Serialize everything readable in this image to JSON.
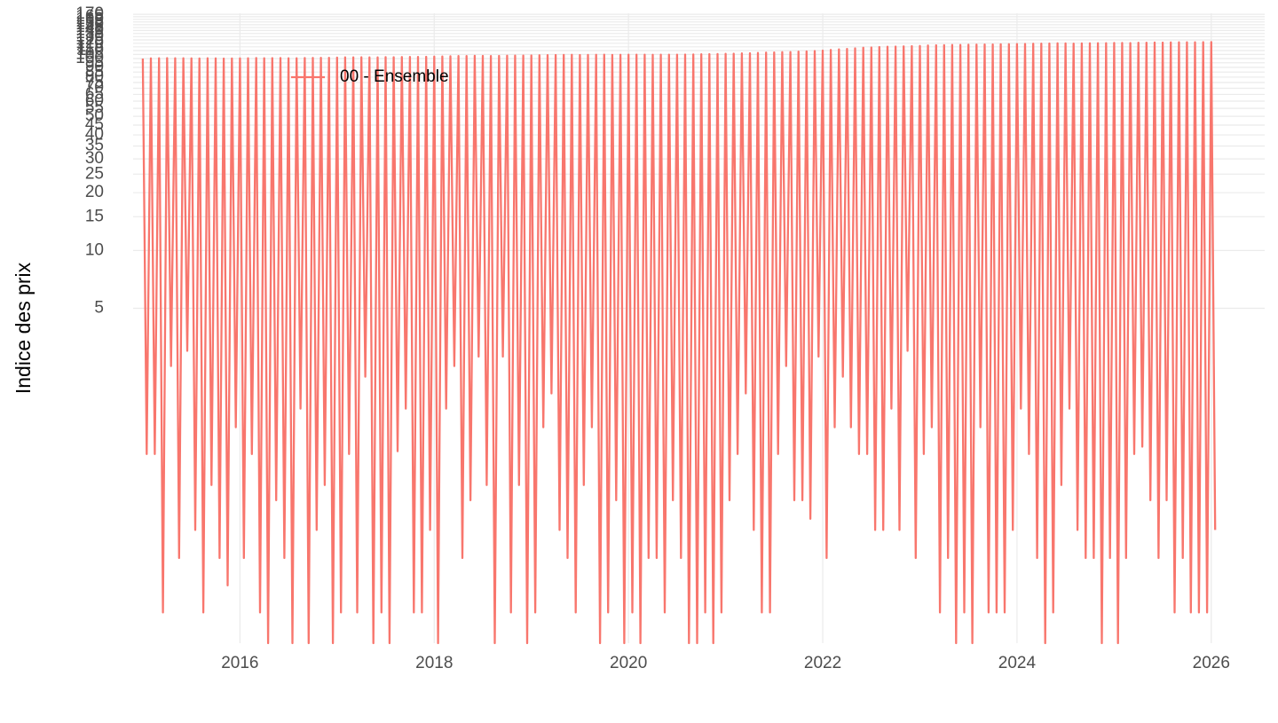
{
  "chart_data": {
    "type": "line",
    "y_label": "Indice des prix",
    "log_y": true,
    "grid": true,
    "legend_position": "top-left",
    "xlim": [
      2014.9,
      2026.55
    ],
    "ylim": [
      0.09,
      172
    ],
    "xticks": [
      2016,
      2018,
      2020,
      2022,
      2024,
      2026
    ],
    "yticks": [
      5,
      10,
      15,
      20,
      25,
      30,
      35,
      40,
      45,
      50,
      55,
      60,
      65,
      70,
      75,
      80,
      85,
      90,
      95,
      100,
      105,
      110,
      115,
      120,
      125,
      130,
      135,
      140,
      145,
      150,
      155,
      160,
      165,
      170
    ],
    "x": [
      2015,
      2015.04,
      2015.083,
      2015.123,
      2015.167,
      2015.207,
      2015.25,
      2015.29,
      2015.333,
      2015.373,
      2015.417,
      2015.457,
      2015.5,
      2015.54,
      2015.583,
      2015.623,
      2015.667,
      2015.707,
      2015.75,
      2015.79,
      2015.833,
      2015.873,
      2015.917,
      2015.957,
      2016,
      2016.04,
      2016.083,
      2016.123,
      2016.167,
      2016.207,
      2016.25,
      2016.29,
      2016.333,
      2016.373,
      2016.417,
      2016.457,
      2016.5,
      2016.54,
      2016.583,
      2016.623,
      2016.667,
      2016.707,
      2016.75,
      2016.79,
      2016.833,
      2016.873,
      2016.917,
      2016.957,
      2017,
      2017.04,
      2017.083,
      2017.123,
      2017.167,
      2017.207,
      2017.25,
      2017.29,
      2017.333,
      2017.373,
      2017.417,
      2017.457,
      2017.5,
      2017.54,
      2017.583,
      2017.623,
      2017.667,
      2017.707,
      2017.75,
      2017.79,
      2017.833,
      2017.873,
      2017.917,
      2017.957,
      2018,
      2018.04,
      2018.083,
      2018.123,
      2018.167,
      2018.207,
      2018.25,
      2018.29,
      2018.333,
      2018.373,
      2018.417,
      2018.457,
      2018.5,
      2018.54,
      2018.583,
      2018.623,
      2018.667,
      2018.707,
      2018.75,
      2018.79,
      2018.833,
      2018.873,
      2018.917,
      2018.957,
      2019,
      2019.04,
      2019.083,
      2019.123,
      2019.167,
      2019.207,
      2019.25,
      2019.29,
      2019.333,
      2019.373,
      2019.417,
      2019.457,
      2019.5,
      2019.54,
      2019.583,
      2019.623,
      2019.667,
      2019.707,
      2019.75,
      2019.79,
      2019.833,
      2019.873,
      2019.917,
      2019.957,
      2020,
      2020.04,
      2020.083,
      2020.123,
      2020.167,
      2020.207,
      2020.25,
      2020.29,
      2020.333,
      2020.373,
      2020.417,
      2020.457,
      2020.5,
      2020.54,
      2020.583,
      2020.623,
      2020.667,
      2020.707,
      2020.75,
      2020.79,
      2020.833,
      2020.873,
      2020.917,
      2020.957,
      2021,
      2021.04,
      2021.083,
      2021.123,
      2021.167,
      2021.207,
      2021.25,
      2021.29,
      2021.333,
      2021.373,
      2021.417,
      2021.457,
      2021.5,
      2021.54,
      2021.583,
      2021.623,
      2021.667,
      2021.707,
      2021.75,
      2021.79,
      2021.833,
      2021.873,
      2021.917,
      2021.957,
      2022,
      2022.04,
      2022.083,
      2022.123,
      2022.167,
      2022.207,
      2022.25,
      2022.29,
      2022.333,
      2022.373,
      2022.417,
      2022.457,
      2022.5,
      2022.54,
      2022.583,
      2022.623,
      2022.667,
      2022.707,
      2022.75,
      2022.79,
      2022.833,
      2022.873,
      2022.917,
      2022.957,
      2023,
      2023.04,
      2023.083,
      2023.123,
      2023.167,
      2023.207,
      2023.25,
      2023.29,
      2023.333,
      2023.373,
      2023.417,
      2023.457,
      2023.5,
      2023.54,
      2023.583,
      2023.623,
      2023.667,
      2023.707,
      2023.75,
      2023.79,
      2023.833,
      2023.873,
      2023.917,
      2023.957,
      2024,
      2024.04,
      2024.083,
      2024.123,
      2024.167,
      2024.207,
      2024.25,
      2024.29,
      2024.333,
      2024.373,
      2024.417,
      2024.457,
      2024.5,
      2024.54,
      2024.583,
      2024.623,
      2024.667,
      2024.707,
      2024.75,
      2024.79,
      2024.833,
      2024.873,
      2024.917,
      2024.957,
      2025,
      2025.04,
      2025.083,
      2025.123,
      2025.167,
      2025.207,
      2025.25,
      2025.29,
      2025.333,
      2025.373,
      2025.417,
      2025.457,
      2025.5,
      2025.54,
      2025.583,
      2025.623,
      2025.667,
      2025.707,
      2025.75,
      2025.79,
      2025.833,
      2025.873,
      2025.917,
      2025.957,
      2026,
      2026.04
    ],
    "series": [
      {
        "name": "00 - Ensemble",
        "color": "#f8766d",
        "values": [
          100,
          0.87,
          100.2,
          0.87,
          100.3,
          0.13,
          100.5,
          2.5,
          100.4,
          0.25,
          100.3,
          3,
          100.2,
          0.35,
          100.1,
          0.13,
          100.3,
          0.6,
          100.2,
          0.25,
          100,
          0.18,
          100.1,
          1.2,
          100.2,
          0.25,
          100.3,
          0.87,
          100.6,
          0.13,
          100.4,
          0.09,
          100.5,
          0.5,
          100.6,
          0.25,
          100.3,
          0.09,
          100.4,
          1.5,
          100.6,
          0.09,
          100.7,
          0.35,
          100.8,
          0.6,
          100.9,
          0.09,
          101.1,
          0.13,
          101.3,
          0.87,
          101.5,
          0.13,
          101.6,
          2.2,
          101.4,
          0.09,
          101.5,
          0.13,
          101.7,
          0.09,
          101.6,
          0.9,
          101.8,
          1.5,
          101.9,
          0.13,
          102,
          0.13,
          102.1,
          0.35,
          102.3,
          0.09,
          102.6,
          1.5,
          102.8,
          2.5,
          103,
          0.25,
          103.1,
          0.5,
          103.3,
          2.8,
          103.2,
          0.6,
          103,
          0.09,
          103.2,
          2.8,
          103.4,
          0.13,
          103.5,
          0.6,
          103.6,
          0.09,
          103.8,
          0.13,
          104,
          1.2,
          104.2,
          1.8,
          104.3,
          0.35,
          104.4,
          0.25,
          104.5,
          0.13,
          104.3,
          0.6,
          104.4,
          1.2,
          104.5,
          0.09,
          104.6,
          0.13,
          104.4,
          0.5,
          104.5,
          0.09,
          104.7,
          0.13,
          104.8,
          0.09,
          104.6,
          0.25,
          104.5,
          0.25,
          104.6,
          0.13,
          104.8,
          0.5,
          104.7,
          0.25,
          104.9,
          0.09,
          105,
          0.09,
          105.2,
          0.13,
          105.4,
          0.09,
          105.5,
          0.13,
          105.8,
          0.5,
          106,
          0.87,
          106.3,
          1.8,
          106.6,
          0.35,
          106.9,
          0.13,
          107.3,
          0.13,
          107.6,
          0.87,
          107.9,
          2.5,
          108.2,
          0.5,
          108.6,
          0.5,
          109,
          0.4,
          109.4,
          2.8,
          110,
          0.25,
          110.8,
          1.2,
          111.5,
          2.2,
          112.2,
          1.2,
          113,
          0.87,
          113.8,
          0.87,
          114.2,
          0.35,
          114.8,
          0.35,
          115.1,
          1.5,
          115.4,
          0.35,
          115.6,
          3,
          116,
          0.25,
          116.3,
          0.87,
          116.9,
          1.2,
          117.2,
          0.13,
          117.4,
          0.25,
          117.6,
          0.09,
          117.8,
          0.13,
          118,
          0.09,
          118.2,
          1.2,
          118.3,
          0.13,
          118.4,
          0.13,
          118.6,
          0.13,
          118.8,
          0.35,
          119,
          1.5,
          119.2,
          0.87,
          119.4,
          0.25,
          119.6,
          0.09,
          119.8,
          0.13,
          120,
          0.6,
          119.9,
          1.5,
          119.7,
          0.35,
          119.9,
          0.25,
          120.1,
          0.25,
          120.2,
          0.09,
          120.3,
          0.25,
          120.5,
          0.09,
          120.6,
          0.25,
          120.4,
          0.87,
          120.8,
          0.95,
          121,
          0.5,
          121.2,
          0.25,
          121.1,
          0.5,
          121.3,
          0.13,
          121.4,
          0.25,
          121.6,
          0.13,
          121.5,
          0.13,
          121.7,
          0.13,
          121.8,
          0.35
        ]
      }
    ]
  }
}
